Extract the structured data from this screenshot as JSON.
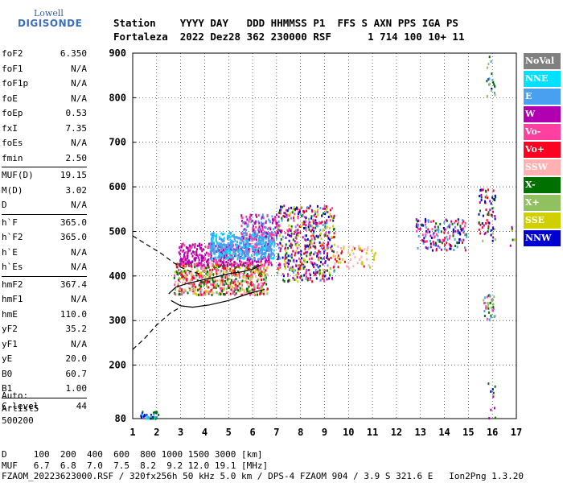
{
  "logo": {
    "line1": "Lowell",
    "line2": "DIGISONDE"
  },
  "header": {
    "line1": "Station    YYYY DAY   DDD HHMMSS P1  FFS S AXN PPS IGA PS",
    "line2": "Fortaleza  2022 Dez28 362 230000 RSF      1 714 100 10+ 11"
  },
  "params": [
    {
      "label": "foF2",
      "value": "6.350"
    },
    {
      "label": "foF1",
      "value": "N/A"
    },
    {
      "label": "foF1p",
      "value": "N/A"
    },
    {
      "label": "foE",
      "value": "N/A"
    },
    {
      "label": "foEp",
      "value": "0.53"
    },
    {
      "label": "fxI",
      "value": "7.35"
    },
    {
      "label": "foEs",
      "value": "N/A"
    },
    {
      "label": "fmin",
      "value": "2.50"
    },
    {
      "sep": true
    },
    {
      "label": "MUF(D)",
      "value": "19.15"
    },
    {
      "label": "M(D)",
      "value": "3.02"
    },
    {
      "label": "D",
      "value": "N/A"
    },
    {
      "sep": true
    },
    {
      "label": "h`F",
      "value": "365.0"
    },
    {
      "label": "h`F2",
      "value": "365.0"
    },
    {
      "label": "h`E",
      "value": "N/A"
    },
    {
      "label": "h`Es",
      "value": "N/A"
    },
    {
      "sep": true
    },
    {
      "label": "hmF2",
      "value": "367.4"
    },
    {
      "label": "hmF1",
      "value": "N/A"
    },
    {
      "label": "hmE",
      "value": "110.0"
    },
    {
      "label": "yF2",
      "value": "35.2"
    },
    {
      "label": "yF1",
      "value": "N/A"
    },
    {
      "label": "yE",
      "value": "20.0"
    },
    {
      "label": "B0",
      "value": "60.7"
    },
    {
      "label": "B1",
      "value": "1.00"
    },
    {
      "sep": true
    },
    {
      "label": "C-level",
      "value": "44"
    }
  ],
  "auto": {
    "line1": "Auto:",
    "line2": "Artist5",
    "line3": "500200"
  },
  "bottom": {
    "dline": "D     100  200  400  600  800 1000 1500 3000 [km]",
    "mufline": "MUF   6.7  6.8  7.0  7.5  8.2  9.2 12.0 19.1 [MHz]",
    "fileline": "FZAOM_20223623000.RSF / 320fx256h 50 kHz 5.0 km / DPS-4 FZAOM 904 / 3.9 S 321.6 E   Ion2Png 1.3.20"
  },
  "legend": [
    {
      "label": "NoVal",
      "color": "#808080"
    },
    {
      "label": "NNE",
      "color": "#00e0ff"
    },
    {
      "label": "E",
      "color": "#4aa0f0"
    },
    {
      "label": "W",
      "color": "#b000b0"
    },
    {
      "label": "Vo-",
      "color": "#ff40a0"
    },
    {
      "label": "Vo+",
      "color": "#ff0020"
    },
    {
      "label": "SSW",
      "color": "#ffb0b0"
    },
    {
      "label": "X-",
      "color": "#007000"
    },
    {
      "label": "X+",
      "color": "#90c060"
    },
    {
      "label": "SSE",
      "color": "#d0d000"
    },
    {
      "label": "NNW",
      "color": "#0000d0"
    }
  ],
  "chart_data": {
    "type": "scatter",
    "xlim": [
      1,
      17
    ],
    "ylim": [
      80,
      900
    ],
    "x_ticks": [
      1,
      2,
      3,
      4,
      5,
      6,
      7,
      8,
      9,
      10,
      11,
      12,
      13,
      14,
      15,
      16,
      17
    ],
    "y_ticks": [
      80,
      200,
      300,
      400,
      500,
      600,
      700,
      800,
      900
    ],
    "grid": true,
    "traces_note": "ionogram echoes",
    "clusters": [
      {
        "fmin": 2.7,
        "fmax": 6.6,
        "hmin": 360,
        "hmax": 430,
        "colors": [
          "#ff0020",
          "#ff40a0",
          "#d0d000",
          "#ffb0b0",
          "#90c060",
          "#007000"
        ],
        "n": 650
      },
      {
        "fmin": 2.9,
        "fmax": 6.8,
        "hmin": 425,
        "hmax": 475,
        "colors": [
          "#b000b0",
          "#b000b0",
          "#ff40a0"
        ],
        "n": 420
      },
      {
        "fmin": 4.2,
        "fmax": 6.9,
        "hmin": 440,
        "hmax": 500,
        "colors": [
          "#4aa0f0",
          "#4aa0f0",
          "#00e0ff"
        ],
        "n": 420
      },
      {
        "fmin": 5.5,
        "fmax": 7.0,
        "hmin": 480,
        "hmax": 540,
        "colors": [
          "#4aa0f0",
          "#b000b0",
          "#ff40a0"
        ],
        "n": 160
      },
      {
        "fmin": 7.0,
        "fmax": 9.4,
        "hmin": 390,
        "hmax": 560,
        "colors": [
          "#ff0020",
          "#b000b0",
          "#0000d0",
          "#d0d000",
          "#4aa0f0",
          "#ff40a0",
          "#007000"
        ],
        "n": 520
      },
      {
        "fmin": 9.4,
        "fmax": 11.1,
        "hmin": 420,
        "hmax": 470,
        "colors": [
          "#ffb0b0",
          "#d0d000",
          "#ff0020"
        ],
        "n": 60
      },
      {
        "fmin": 12.8,
        "fmax": 14.9,
        "hmin": 460,
        "hmax": 530,
        "colors": [
          "#b000b0",
          "#4aa0f0",
          "#ff0020",
          "#0000d0",
          "#007000",
          "#ff40a0"
        ],
        "n": 160
      },
      {
        "fmin": 15.4,
        "fmax": 16.1,
        "hmin": 480,
        "hmax": 600,
        "colors": [
          "#007000",
          "#0000d0",
          "#b000b0",
          "#90c060",
          "#ff0020"
        ],
        "n": 70
      },
      {
        "fmin": 15.6,
        "fmax": 16.1,
        "hmin": 300,
        "hmax": 360,
        "colors": [
          "#90c060",
          "#007000",
          "#ff40a0",
          "#4aa0f0"
        ],
        "n": 40
      },
      {
        "fmin": 15.7,
        "fmax": 16.1,
        "hmin": 800,
        "hmax": 900,
        "colors": [
          "#007000",
          "#0000d0",
          "#4aa0f0",
          "#90c060"
        ],
        "n": 20
      },
      {
        "fmin": 1.3,
        "fmax": 2.1,
        "hmin": 82,
        "hmax": 98,
        "colors": [
          "#4aa0f0",
          "#0000d0",
          "#007000",
          "#00e0ff"
        ],
        "n": 40
      },
      {
        "fmin": 16.7,
        "fmax": 16.9,
        "hmin": 470,
        "hmax": 540,
        "colors": [
          "#b000b0",
          "#d0d000",
          "#007000"
        ],
        "n": 6
      },
      {
        "fmin": 15.8,
        "fmax": 16.1,
        "hmin": 82,
        "hmax": 180,
        "colors": [
          "#007000",
          "#b000b0",
          "#0000d0"
        ],
        "n": 10
      }
    ],
    "profile_solid": [
      [
        2.5,
        360
      ],
      [
        2.8,
        375
      ],
      [
        3.2,
        382
      ],
      [
        3.8,
        390
      ],
      [
        4.4,
        397
      ],
      [
        5.0,
        405
      ],
      [
        5.6,
        410
      ],
      [
        6.0,
        415
      ],
      [
        6.35,
        425
      ]
    ],
    "profile_solid_lower": [
      [
        2.6,
        345
      ],
      [
        3.0,
        333
      ],
      [
        3.5,
        330
      ],
      [
        4.2,
        335
      ],
      [
        5.0,
        345
      ],
      [
        5.8,
        360
      ],
      [
        6.3,
        367
      ],
      [
        6.5,
        370
      ]
    ],
    "profile_dashed_upper": [
      [
        1,
        490
      ],
      [
        1.6,
        470
      ],
      [
        2.2,
        450
      ],
      [
        2.7,
        430
      ],
      [
        3.0,
        420
      ],
      [
        3.4,
        410
      ],
      [
        3.8,
        405
      ]
    ],
    "profile_dashed_lower": [
      [
        1,
        235
      ],
      [
        1.5,
        260
      ],
      [
        2.0,
        290
      ],
      [
        2.6,
        318
      ],
      [
        3.0,
        330
      ]
    ]
  }
}
